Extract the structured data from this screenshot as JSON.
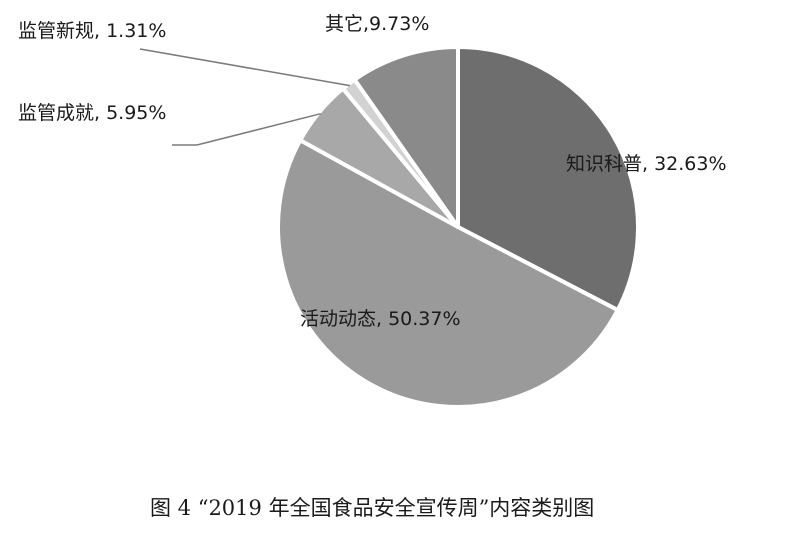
{
  "chart_data": {
    "type": "pie",
    "categories": [
      "知识科普",
      "活动动态",
      "监管成就",
      "监管新规",
      "其它"
    ],
    "values": [
      32.63,
      50.37,
      5.95,
      1.31,
      9.73
    ],
    "labels": [
      "知识科普, 32.63%",
      "活动动态, 50.37%",
      "监管成就, 5.95%",
      "监管新规, 1.31%",
      "其它,9.73%"
    ],
    "colors": [
      "#6e6e6e",
      "#9a9a9a",
      "#a8a8a8",
      "#d2d2d2",
      "#8a8a8a"
    ],
    "start_angle_deg": 0,
    "direction": "clockwise",
    "caption": "图 4 “2019 年全国食品安全宣传周”内容类别图"
  }
}
